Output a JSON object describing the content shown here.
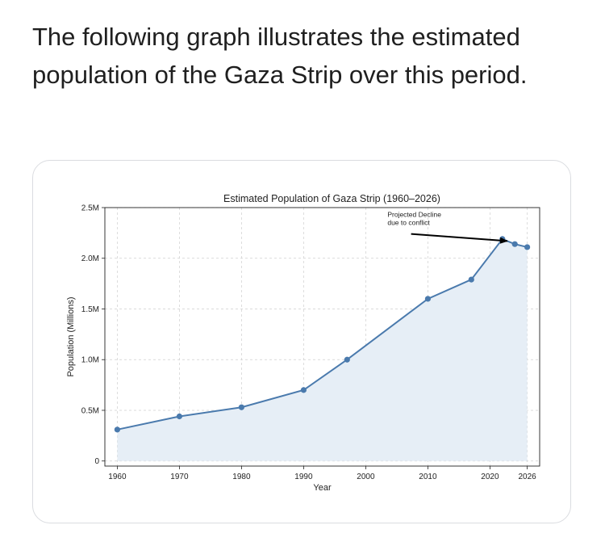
{
  "intro_text": "The following graph illustrates the estimated population of the Gaza Strip over this period.",
  "chart_data": {
    "type": "line",
    "title": "Estimated Population of Gaza Strip (1960–2026)",
    "xlabel": "Year",
    "ylabel": "Population (Millions)",
    "x": [
      1960,
      1970,
      1980,
      1990,
      1997,
      2010,
      2017,
      2022,
      2024,
      2026
    ],
    "values": [
      0.31,
      0.44,
      0.53,
      0.7,
      1.0,
      1.6,
      1.79,
      2.19,
      2.14,
      2.11
    ],
    "series": [
      {
        "name": "Population",
        "values": [
          0.31,
          0.44,
          0.53,
          0.7,
          1.0,
          1.6,
          1.79,
          2.19,
          2.14,
          2.11
        ]
      }
    ],
    "xlim": [
      1958,
      2028
    ],
    "ylim": [
      -0.05,
      2.5
    ],
    "xticks": [
      1960,
      1970,
      1980,
      1990,
      2000,
      2010,
      2020,
      2026
    ],
    "xtick_labels": [
      "1960",
      "1970",
      "1980",
      "1990",
      "2000",
      "2010",
      "2020",
      "2026"
    ],
    "yticks": [
      0,
      0.5,
      1.0,
      1.5,
      2.0,
      2.5
    ],
    "ytick_labels": [
      "0",
      "0.5M",
      "1.0M",
      "1.5M",
      "2.0M",
      "2.5M"
    ],
    "annotation": {
      "lines": [
        "Projected Decline",
        "due to conflict"
      ],
      "text_at": [
        2003.5,
        2.41
      ],
      "arrow_from": [
        2007.3,
        2.24
      ],
      "arrow_to": [
        2022.8,
        2.17
      ]
    },
    "grid": true,
    "line_color": "#4a7aad",
    "fill_color": "#e6eef6"
  }
}
